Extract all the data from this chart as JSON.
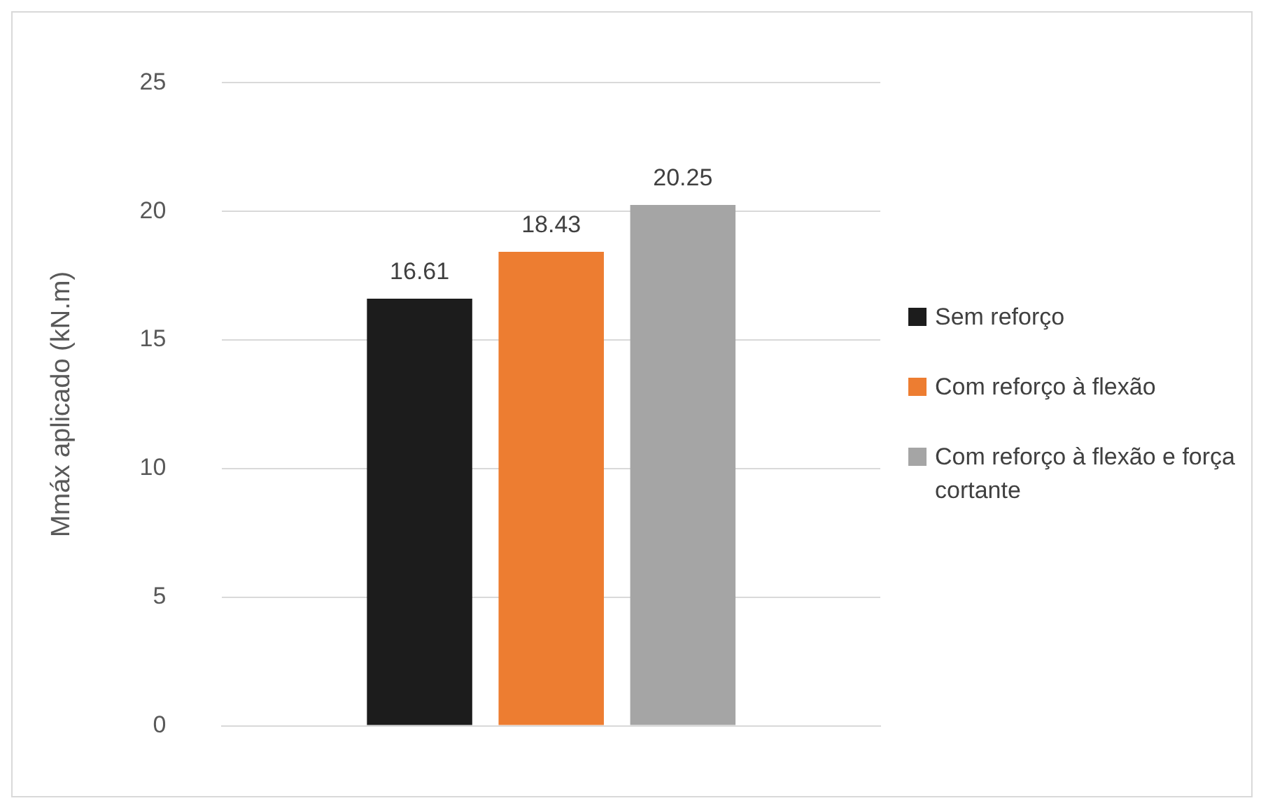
{
  "chart_data": {
    "type": "bar",
    "ylabel": "Mmáx aplicado (kN.m)",
    "categories": [
      null
    ],
    "series": [
      {
        "name": "Sem reforço",
        "color": "#1c1c1c",
        "values": [
          16.61
        ]
      },
      {
        "name": "Com reforço à flexão",
        "color": "#ed7d31",
        "values": [
          18.43
        ]
      },
      {
        "name": "Com reforço à flexão e força cortante",
        "color": "#a5a5a5",
        "values": [
          20.25
        ]
      }
    ],
    "ylim": [
      0,
      25
    ],
    "yticks": [
      0,
      5,
      10,
      15,
      20,
      25
    ],
    "grid": "y",
    "legend": "right",
    "data_labels": true
  }
}
